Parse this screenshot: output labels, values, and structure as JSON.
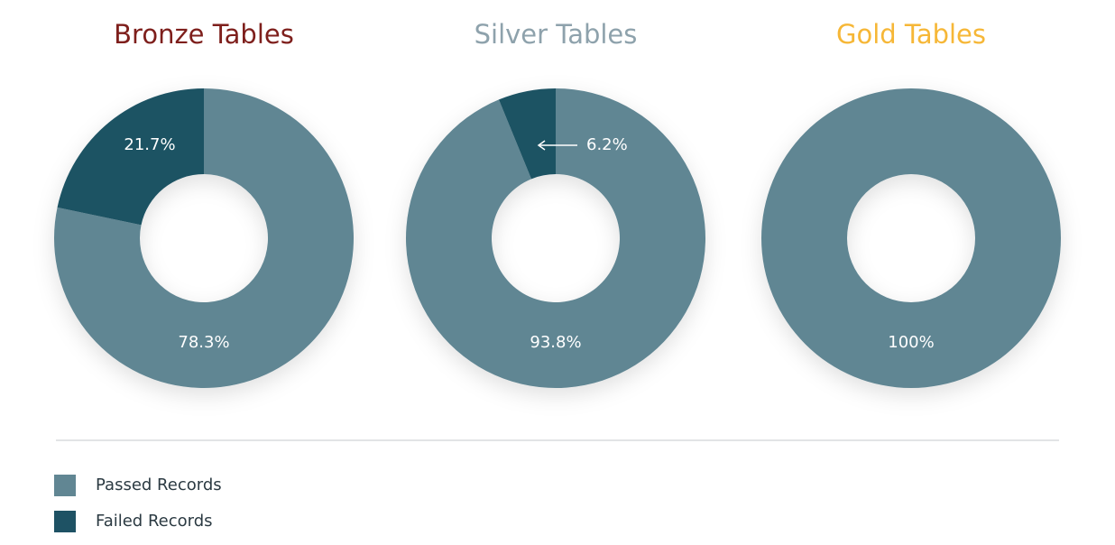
{
  "chart_data": [
    {
      "type": "donut",
      "title": "Bronze Tables",
      "title_color": "#7e1f1c",
      "values": [
        78.3,
        21.7
      ],
      "value_labels": [
        "78.3%",
        "21.7%"
      ]
    },
    {
      "type": "donut",
      "title": "Silver Tables",
      "title_color": "#8ea2ac",
      "values": [
        93.8,
        6.2
      ],
      "value_labels": [
        "93.8%",
        "6.2%"
      ]
    },
    {
      "type": "donut",
      "title": "Gold Tables",
      "title_color": "#f6b737",
      "values": [
        100
      ],
      "value_labels": [
        "100%"
      ]
    }
  ],
  "legend": {
    "items": [
      {
        "name": "Passed Records",
        "color": "#618693"
      },
      {
        "name": "Failed Records",
        "color": "#1e5264"
      }
    ]
  }
}
